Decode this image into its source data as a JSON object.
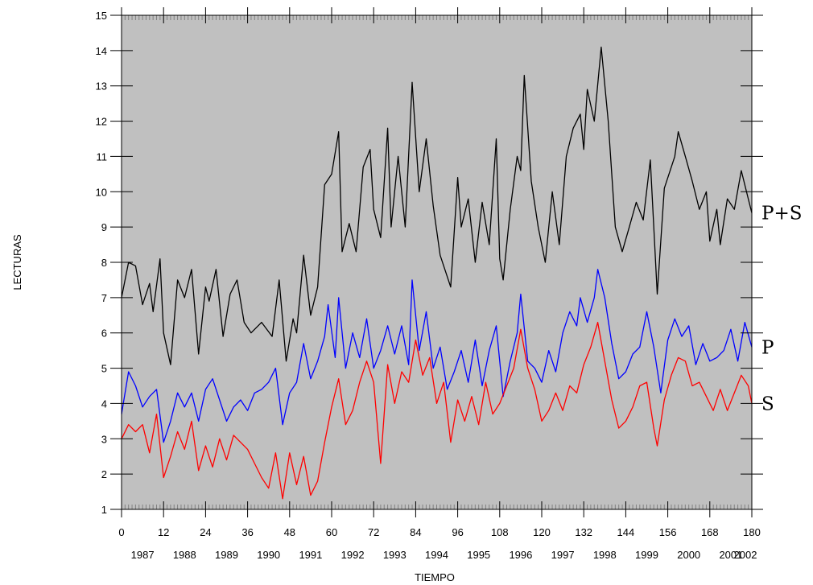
{
  "chart_data": {
    "type": "line",
    "xlabel": "TIEMPO",
    "ylabel": "LECTURAS",
    "xlim": [
      0,
      180
    ],
    "ylim": [
      1,
      15
    ],
    "x_ticks": [
      "0",
      "12",
      "24",
      "36",
      "48",
      "60",
      "72",
      "84",
      "96",
      "108",
      "120",
      "132",
      "144",
      "156",
      "168",
      "180"
    ],
    "y_ticks": [
      "1",
      "2",
      "3",
      "4",
      "5",
      "6",
      "7",
      "8",
      "9",
      "10",
      "11",
      "12",
      "13",
      "14",
      "15"
    ],
    "year_labels": [
      "1987",
      "1988",
      "1989",
      "1990",
      "1991",
      "1992",
      "1993",
      "1994",
      "1995",
      "1996",
      "1997",
      "1998",
      "1999",
      "2000",
      "2001",
      "2002"
    ],
    "grid": false,
    "colors": {
      "background": "#c0c0c0",
      "P+S": "#000000",
      "P": "#0000ff",
      "S": "#ff0000"
    },
    "series": [
      {
        "name": "P+S",
        "color": "#000000",
        "points": [
          [
            0,
            7
          ],
          [
            2,
            8
          ],
          [
            4,
            7.9
          ],
          [
            6,
            6.8
          ],
          [
            8,
            7.4
          ],
          [
            9,
            6.6
          ],
          [
            11,
            8.1
          ],
          [
            12,
            6
          ],
          [
            14,
            5.1
          ],
          [
            16,
            7.5
          ],
          [
            18,
            7
          ],
          [
            20,
            7.8
          ],
          [
            22,
            5.4
          ],
          [
            24,
            7.3
          ],
          [
            25,
            6.9
          ],
          [
            27,
            7.8
          ],
          [
            29,
            5.9
          ],
          [
            31,
            7.1
          ],
          [
            33,
            7.5
          ],
          [
            35,
            6.3
          ],
          [
            37,
            6
          ],
          [
            40,
            6.3
          ],
          [
            43,
            5.9
          ],
          [
            45,
            7.5
          ],
          [
            47,
            5.2
          ],
          [
            49,
            6.4
          ],
          [
            50,
            6
          ],
          [
            52,
            8.2
          ],
          [
            54,
            6.5
          ],
          [
            56,
            7.3
          ],
          [
            58,
            10.2
          ],
          [
            60,
            10.5
          ],
          [
            62,
            11.7
          ],
          [
            63,
            8.3
          ],
          [
            65,
            9.1
          ],
          [
            67,
            8.3
          ],
          [
            69,
            10.7
          ],
          [
            71,
            11.2
          ],
          [
            72,
            9.5
          ],
          [
            74,
            8.7
          ],
          [
            76,
            11.8
          ],
          [
            77,
            9
          ],
          [
            79,
            11
          ],
          [
            81,
            9
          ],
          [
            83,
            13.1
          ],
          [
            85,
            10
          ],
          [
            87,
            11.5
          ],
          [
            89,
            9.6
          ],
          [
            91,
            8.2
          ],
          [
            94,
            7.3
          ],
          [
            96,
            10.4
          ],
          [
            97,
            9
          ],
          [
            99,
            9.8
          ],
          [
            101,
            8
          ],
          [
            103,
            9.7
          ],
          [
            105,
            8.5
          ],
          [
            107,
            11.5
          ],
          [
            108,
            8.1
          ],
          [
            109,
            7.5
          ],
          [
            111,
            9.5
          ],
          [
            113,
            11
          ],
          [
            114,
            10.6
          ],
          [
            115,
            13.3
          ],
          [
            117,
            10.3
          ],
          [
            119,
            9
          ],
          [
            121,
            8
          ],
          [
            123,
            10
          ],
          [
            125,
            8.5
          ],
          [
            127,
            11
          ],
          [
            129,
            11.8
          ],
          [
            131,
            12.2
          ],
          [
            132,
            11.2
          ],
          [
            133,
            12.9
          ],
          [
            135,
            12
          ],
          [
            137,
            14.1
          ],
          [
            139,
            12
          ],
          [
            141,
            9
          ],
          [
            143,
            8.3
          ],
          [
            145,
            9
          ],
          [
            147,
            9.7
          ],
          [
            149,
            9.2
          ],
          [
            151,
            10.9
          ],
          [
            153,
            7.1
          ],
          [
            155,
            10.1
          ],
          [
            158,
            11
          ],
          [
            159,
            11.7
          ],
          [
            161,
            11
          ],
          [
            163,
            10.3
          ],
          [
            165,
            9.5
          ],
          [
            167,
            10
          ],
          [
            168,
            8.6
          ],
          [
            170,
            9.5
          ],
          [
            171,
            8.5
          ],
          [
            173,
            9.8
          ],
          [
            175,
            9.5
          ],
          [
            177,
            10.6
          ],
          [
            179,
            9.8
          ],
          [
            180,
            9.4
          ]
        ]
      },
      {
        "name": "P",
        "color": "#0000ff",
        "points": [
          [
            0,
            3.7
          ],
          [
            2,
            4.9
          ],
          [
            4,
            4.5
          ],
          [
            6,
            3.9
          ],
          [
            8,
            4.2
          ],
          [
            10,
            4.4
          ],
          [
            12,
            2.9
          ],
          [
            14,
            3.5
          ],
          [
            16,
            4.3
          ],
          [
            18,
            3.9
          ],
          [
            20,
            4.3
          ],
          [
            22,
            3.5
          ],
          [
            24,
            4.4
          ],
          [
            26,
            4.7
          ],
          [
            28,
            4.1
          ],
          [
            30,
            3.5
          ],
          [
            32,
            3.9
          ],
          [
            34,
            4.1
          ],
          [
            36,
            3.8
          ],
          [
            38,
            4.3
          ],
          [
            40,
            4.4
          ],
          [
            42,
            4.6
          ],
          [
            44,
            5
          ],
          [
            46,
            3.4
          ],
          [
            48,
            4.3
          ],
          [
            50,
            4.6
          ],
          [
            52,
            5.7
          ],
          [
            54,
            4.7
          ],
          [
            56,
            5.2
          ],
          [
            58,
            5.9
          ],
          [
            59,
            6.8
          ],
          [
            61,
            5.3
          ],
          [
            62,
            7
          ],
          [
            64,
            5
          ],
          [
            66,
            6
          ],
          [
            68,
            5.3
          ],
          [
            70,
            6.4
          ],
          [
            72,
            5
          ],
          [
            74,
            5.5
          ],
          [
            76,
            6.2
          ],
          [
            78,
            5.4
          ],
          [
            80,
            6.2
          ],
          [
            82,
            5.1
          ],
          [
            83,
            7.5
          ],
          [
            85,
            5.5
          ],
          [
            87,
            6.6
          ],
          [
            89,
            5
          ],
          [
            91,
            5.6
          ],
          [
            93,
            4.4
          ],
          [
            95,
            4.9
          ],
          [
            97,
            5.5
          ],
          [
            99,
            4.6
          ],
          [
            101,
            5.8
          ],
          [
            103,
            4.5
          ],
          [
            105,
            5.5
          ],
          [
            107,
            6.2
          ],
          [
            109,
            4.2
          ],
          [
            111,
            5.2
          ],
          [
            113,
            6
          ],
          [
            114,
            7.1
          ],
          [
            116,
            5.2
          ],
          [
            118,
            5
          ],
          [
            120,
            4.6
          ],
          [
            122,
            5.5
          ],
          [
            124,
            4.9
          ],
          [
            126,
            6
          ],
          [
            128,
            6.6
          ],
          [
            130,
            6.2
          ],
          [
            131,
            7
          ],
          [
            133,
            6.3
          ],
          [
            135,
            7
          ],
          [
            136,
            7.8
          ],
          [
            138,
            7
          ],
          [
            140,
            5.7
          ],
          [
            142,
            4.7
          ],
          [
            144,
            4.9
          ],
          [
            146,
            5.4
          ],
          [
            148,
            5.6
          ],
          [
            150,
            6.6
          ],
          [
            152,
            5.6
          ],
          [
            154,
            4.3
          ],
          [
            156,
            5.8
          ],
          [
            158,
            6.4
          ],
          [
            160,
            5.9
          ],
          [
            162,
            6.2
          ],
          [
            164,
            5.1
          ],
          [
            166,
            5.7
          ],
          [
            168,
            5.2
          ],
          [
            170,
            5.3
          ],
          [
            172,
            5.5
          ],
          [
            174,
            6.1
          ],
          [
            176,
            5.2
          ],
          [
            178,
            6.3
          ],
          [
            180,
            5.6
          ]
        ]
      },
      {
        "name": "S",
        "color": "#ff0000",
        "points": [
          [
            0,
            3
          ],
          [
            2,
            3.4
          ],
          [
            4,
            3.2
          ],
          [
            6,
            3.4
          ],
          [
            8,
            2.6
          ],
          [
            10,
            3.7
          ],
          [
            12,
            1.9
          ],
          [
            14,
            2.5
          ],
          [
            16,
            3.2
          ],
          [
            18,
            2.7
          ],
          [
            20,
            3.5
          ],
          [
            22,
            2.1
          ],
          [
            24,
            2.8
          ],
          [
            26,
            2.2
          ],
          [
            28,
            3
          ],
          [
            30,
            2.4
          ],
          [
            32,
            3.1
          ],
          [
            34,
            2.9
          ],
          [
            36,
            2.7
          ],
          [
            38,
            2.3
          ],
          [
            40,
            1.9
          ],
          [
            42,
            1.6
          ],
          [
            44,
            2.6
          ],
          [
            46,
            1.3
          ],
          [
            48,
            2.6
          ],
          [
            50,
            1.7
          ],
          [
            52,
            2.5
          ],
          [
            54,
            1.4
          ],
          [
            56,
            1.8
          ],
          [
            58,
            2.9
          ],
          [
            60,
            3.9
          ],
          [
            62,
            4.7
          ],
          [
            64,
            3.4
          ],
          [
            66,
            3.8
          ],
          [
            68,
            4.6
          ],
          [
            70,
            5.2
          ],
          [
            72,
            4.6
          ],
          [
            74,
            2.3
          ],
          [
            76,
            5.1
          ],
          [
            78,
            4
          ],
          [
            80,
            4.9
          ],
          [
            82,
            4.6
          ],
          [
            84,
            5.8
          ],
          [
            86,
            4.8
          ],
          [
            88,
            5.3
          ],
          [
            90,
            4
          ],
          [
            92,
            4.6
          ],
          [
            94,
            2.9
          ],
          [
            96,
            4.1
          ],
          [
            98,
            3.5
          ],
          [
            100,
            4.2
          ],
          [
            102,
            3.4
          ],
          [
            104,
            4.6
          ],
          [
            106,
            3.7
          ],
          [
            108,
            4
          ],
          [
            110,
            4.5
          ],
          [
            112,
            5
          ],
          [
            114,
            6.1
          ],
          [
            116,
            5
          ],
          [
            118,
            4.4
          ],
          [
            120,
            3.5
          ],
          [
            122,
            3.8
          ],
          [
            124,
            4.3
          ],
          [
            126,
            3.8
          ],
          [
            128,
            4.5
          ],
          [
            130,
            4.3
          ],
          [
            132,
            5.1
          ],
          [
            134,
            5.6
          ],
          [
            136,
            6.3
          ],
          [
            138,
            5.2
          ],
          [
            140,
            4.1
          ],
          [
            142,
            3.3
          ],
          [
            144,
            3.5
          ],
          [
            146,
            3.9
          ],
          [
            148,
            4.5
          ],
          [
            150,
            4.6
          ],
          [
            152,
            3.3
          ],
          [
            153,
            2.8
          ],
          [
            155,
            4.1
          ],
          [
            157,
            4.8
          ],
          [
            159,
            5.3
          ],
          [
            161,
            5.2
          ],
          [
            163,
            4.5
          ],
          [
            165,
            4.6
          ],
          [
            167,
            4.2
          ],
          [
            169,
            3.8
          ],
          [
            171,
            4.4
          ],
          [
            173,
            3.8
          ],
          [
            175,
            4.3
          ],
          [
            177,
            4.8
          ],
          [
            179,
            4.5
          ],
          [
            180,
            4
          ]
        ]
      }
    ]
  }
}
